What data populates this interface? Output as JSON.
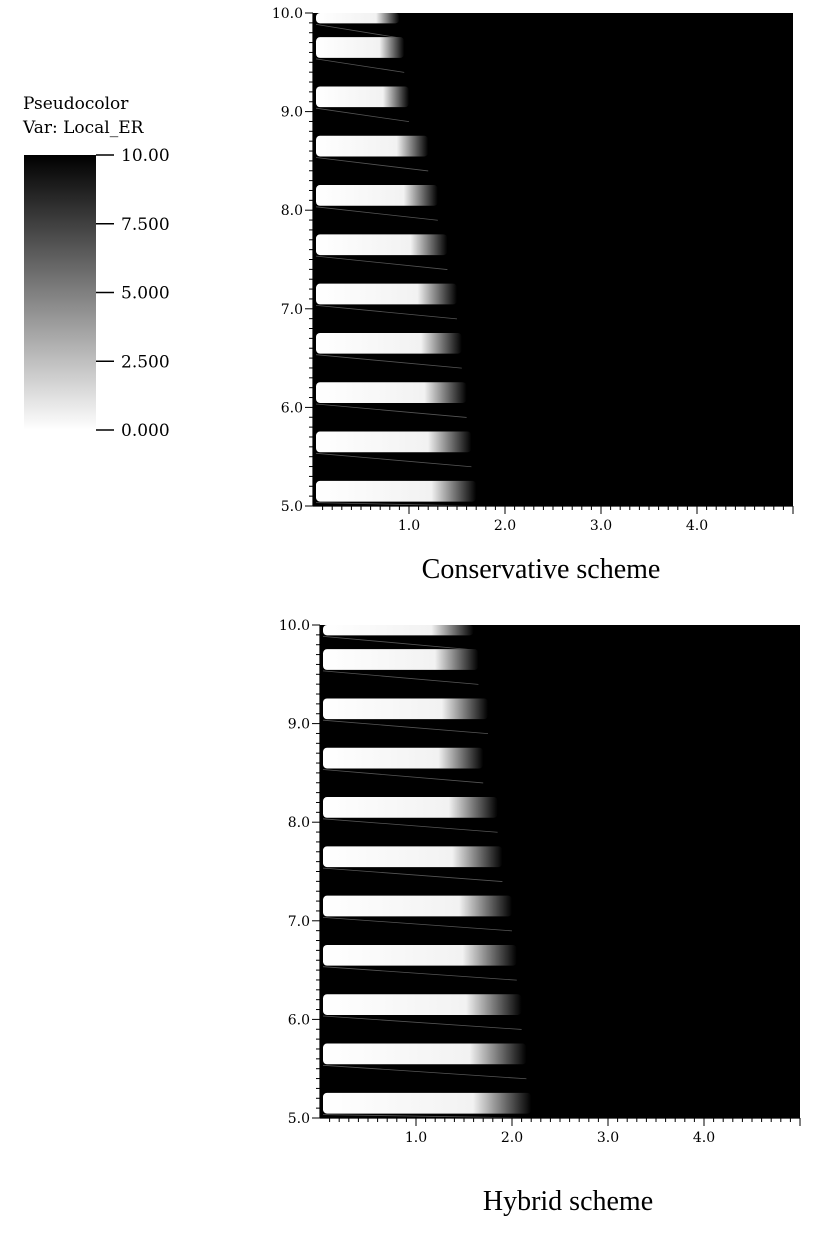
{
  "legend": {
    "title": "Pseudocolor",
    "var_label": "Var: Local_ER",
    "ticks": [
      "10.00",
      "7.500",
      "5.000",
      "2.500",
      "0.000"
    ],
    "tick_values": [
      10,
      7.5,
      5,
      2.5,
      0
    ],
    "color_low": "#ffffff",
    "color_high": "#000000"
  },
  "chart_data": [
    {
      "type": "heatmap",
      "title": "Conservative scheme",
      "xlabel": "",
      "ylabel": "",
      "xlim": [
        0,
        5.0
      ],
      "ylim": [
        5.0,
        10.0
      ],
      "x_ticks": [
        "1.0",
        "2.0",
        "3.0",
        "4.0"
      ],
      "x_tick_values": [
        1,
        2,
        3,
        4
      ],
      "y_ticks": [
        "10.0",
        "9.0",
        "8.0",
        "7.0",
        "6.0",
        "5.0"
      ],
      "y_tick_values": [
        10,
        9,
        8,
        7,
        6,
        5
      ],
      "colormap": "gray_r",
      "value_range": [
        0,
        10
      ],
      "background_value": 10,
      "bands": [
        {
          "y": 10.0,
          "x_end": 0.9
        },
        {
          "y": 9.65,
          "x_end": 0.95
        },
        {
          "y": 9.15,
          "x_end": 1.0
        },
        {
          "y": 8.65,
          "x_end": 1.2
        },
        {
          "y": 8.15,
          "x_end": 1.3
        },
        {
          "y": 7.65,
          "x_end": 1.4
        },
        {
          "y": 7.15,
          "x_end": 1.5
        },
        {
          "y": 6.65,
          "x_end": 1.55
        },
        {
          "y": 6.15,
          "x_end": 1.6
        },
        {
          "y": 5.65,
          "x_end": 1.65
        },
        {
          "y": 5.15,
          "x_end": 1.7
        }
      ]
    },
    {
      "type": "heatmap",
      "title": "Hybrid scheme",
      "xlabel": "",
      "ylabel": "",
      "xlim": [
        0,
        5.0
      ],
      "ylim": [
        5.0,
        10.0
      ],
      "x_ticks": [
        "1.0",
        "2.0",
        "3.0",
        "4.0"
      ],
      "x_tick_values": [
        1,
        2,
        3,
        4
      ],
      "y_ticks": [
        "10.0",
        "9.0",
        "8.0",
        "7.0",
        "6.0",
        "5.0"
      ],
      "y_tick_values": [
        10,
        9,
        8,
        7,
        6,
        5
      ],
      "colormap": "gray_r",
      "value_range": [
        0,
        10
      ],
      "background_value": 10,
      "bands": [
        {
          "y": 10.0,
          "x_end": 1.6
        },
        {
          "y": 9.65,
          "x_end": 1.65
        },
        {
          "y": 9.15,
          "x_end": 1.75
        },
        {
          "y": 8.65,
          "x_end": 1.7
        },
        {
          "y": 8.15,
          "x_end": 1.85
        },
        {
          "y": 7.65,
          "x_end": 1.9
        },
        {
          "y": 7.15,
          "x_end": 2.0
        },
        {
          "y": 6.65,
          "x_end": 2.05
        },
        {
          "y": 6.15,
          "x_end": 2.1
        },
        {
          "y": 5.65,
          "x_end": 2.15
        },
        {
          "y": 5.15,
          "x_end": 2.2
        }
      ]
    }
  ]
}
